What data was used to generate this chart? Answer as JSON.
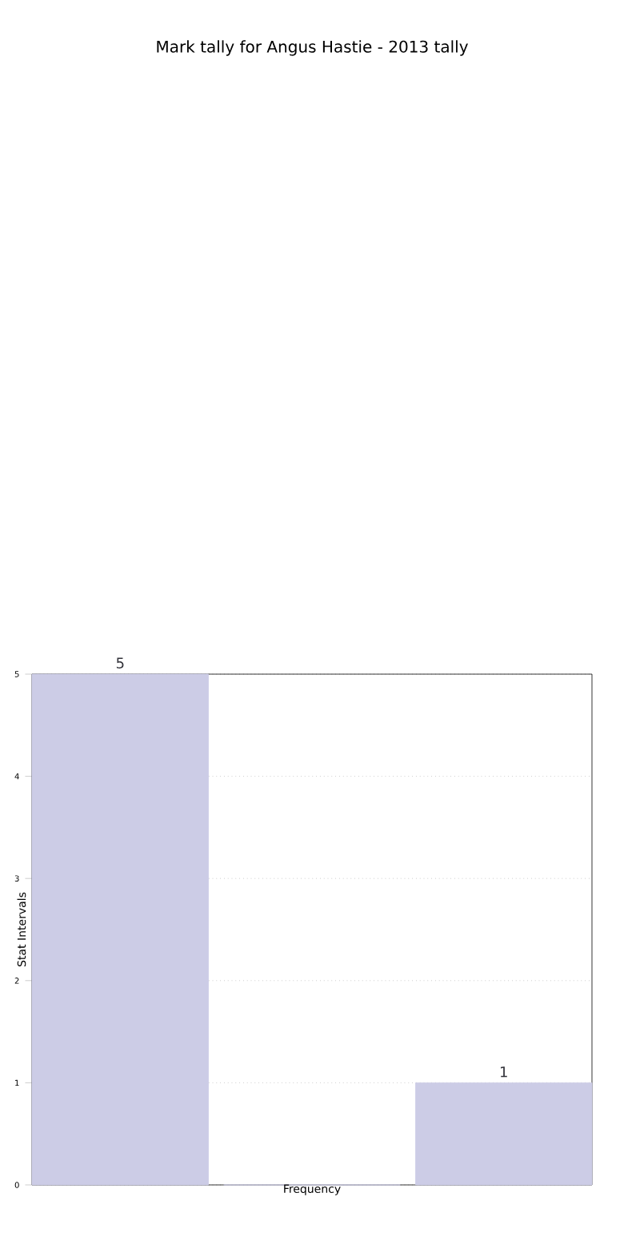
{
  "chart_data": {
    "type": "bar",
    "title": "Mark tally for Angus Hastie - 2013 tally",
    "xlabel": "Frequency",
    "ylabel": "Stat Intervals",
    "categories": [
      null,
      null,
      null
    ],
    "values": [
      5,
      0,
      1
    ],
    "value_labels": [
      "5",
      null,
      "1"
    ],
    "color": "#cccce6",
    "ylim": [
      0,
      5
    ],
    "yticks": [
      0,
      1,
      2,
      3,
      4,
      5
    ],
    "grid": "y"
  }
}
